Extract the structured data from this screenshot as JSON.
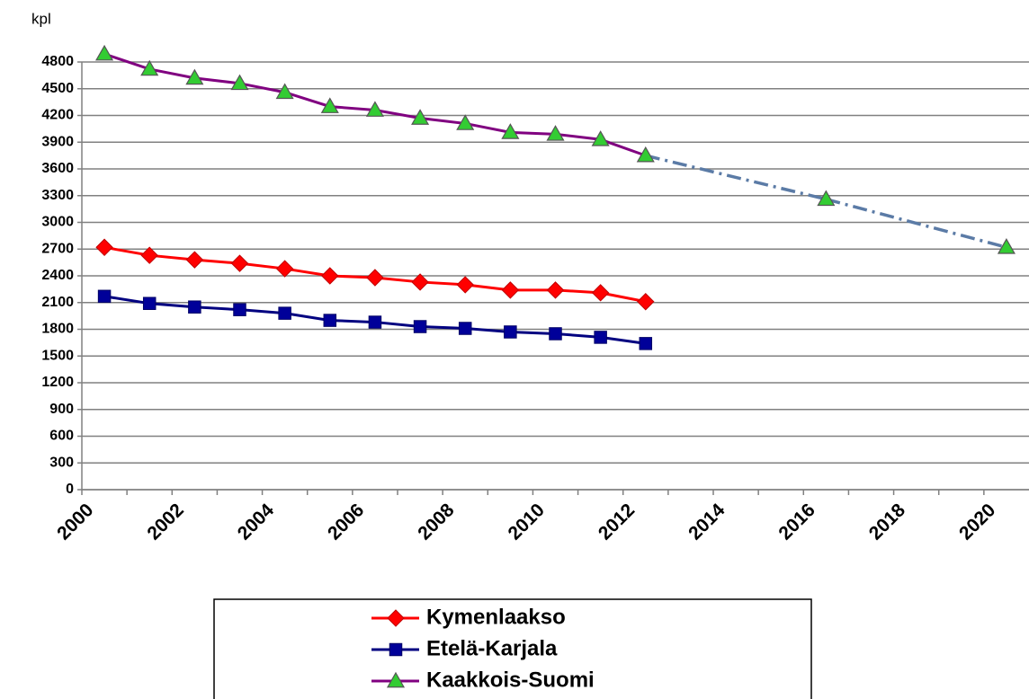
{
  "chart_data": {
    "type": "line",
    "ylabel": "kpl",
    "categories": [
      "2000",
      null,
      "2002",
      null,
      "2004",
      null,
      "2006",
      null,
      "2008",
      null,
      "2010",
      null,
      "2012",
      null,
      "2014",
      null,
      "2016",
      null,
      "2018",
      null,
      "2020"
    ],
    "series": [
      {
        "name": "Kymenlaakso",
        "color": "#ff0000",
        "marker": "diamond",
        "values": [
          2720,
          2630,
          2580,
          2540,
          2480,
          2400,
          2380,
          2330,
          2300,
          2240,
          2240,
          2210,
          2110,
          null,
          null,
          null,
          null,
          null,
          null,
          null,
          null
        ]
      },
      {
        "name": "Etelä-Karjala",
        "color": "#000080",
        "marker": "square",
        "values": [
          2170,
          2090,
          2050,
          2020,
          1980,
          1900,
          1880,
          1830,
          1810,
          1770,
          1750,
          1710,
          1640,
          null,
          null,
          null,
          null,
          null,
          null,
          null,
          null
        ]
      },
      {
        "name": "Kaakkois-Suomi",
        "color": "#800080",
        "marker": "triangle",
        "gap_color": "#5b7ba6",
        "values": [
          4890,
          4720,
          4620,
          4560,
          4460,
          4300,
          4260,
          4170,
          4110,
          4010,
          3990,
          3930,
          3750,
          null,
          null,
          null,
          3260,
          null,
          null,
          null,
          2720
        ]
      }
    ],
    "ylim": [
      0,
      4800
    ],
    "yticks": [
      0,
      300,
      600,
      900,
      1200,
      1500,
      1800,
      2100,
      2400,
      2700,
      3000,
      3300,
      3600,
      3900,
      4200,
      4500,
      4800
    ],
    "grid": true
  }
}
